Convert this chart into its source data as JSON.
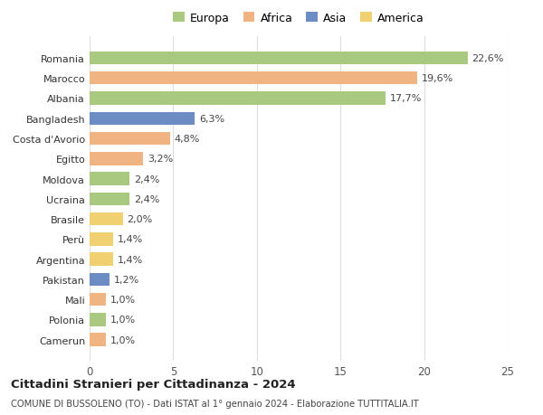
{
  "countries": [
    "Romania",
    "Marocco",
    "Albania",
    "Bangladesh",
    "Costa d'Avorio",
    "Egitto",
    "Moldova",
    "Ucraina",
    "Brasile",
    "Perù",
    "Argentina",
    "Pakistan",
    "Mali",
    "Polonia",
    "Camerun"
  ],
  "values": [
    22.6,
    19.6,
    17.7,
    6.3,
    4.8,
    3.2,
    2.4,
    2.4,
    2.0,
    1.4,
    1.4,
    1.2,
    1.0,
    1.0,
    1.0
  ],
  "labels": [
    "22,6%",
    "19,6%",
    "17,7%",
    "6,3%",
    "4,8%",
    "3,2%",
    "2,4%",
    "2,4%",
    "2,0%",
    "1,4%",
    "1,4%",
    "1,2%",
    "1,0%",
    "1,0%",
    "1,0%"
  ],
  "continents": [
    "Europa",
    "Africa",
    "Europa",
    "Asia",
    "Africa",
    "Africa",
    "Europa",
    "Europa",
    "America",
    "America",
    "America",
    "Asia",
    "Africa",
    "Europa",
    "Africa"
  ],
  "continent_colors": {
    "Europa": "#a8c97f",
    "Africa": "#f0b482",
    "Asia": "#6b8dc4",
    "America": "#f0d070"
  },
  "legend_order": [
    "Europa",
    "Africa",
    "Asia",
    "America"
  ],
  "title": "Cittadini Stranieri per Cittadinanza - 2024",
  "subtitle": "COMUNE DI BUSSOLENO (TO) - Dati ISTAT al 1° gennaio 2024 - Elaborazione TUTTITALIA.IT",
  "xlim": [
    0,
    25
  ],
  "xticks": [
    0,
    5,
    10,
    15,
    20,
    25
  ],
  "background_color": "#ffffff",
  "grid_color": "#dddddd"
}
